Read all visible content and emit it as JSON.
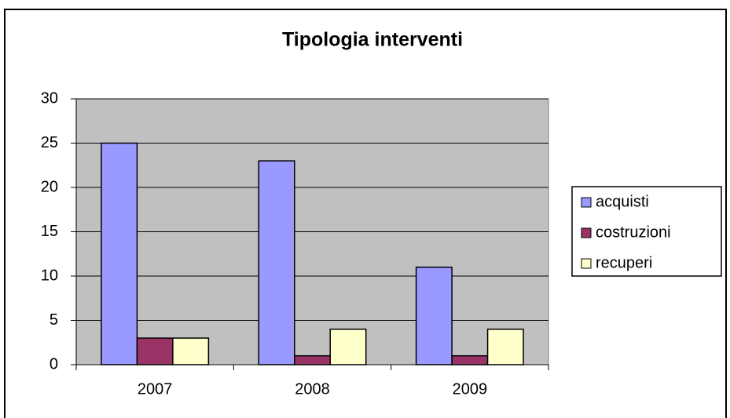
{
  "chart_data": {
    "type": "bar",
    "title": "Tipologia interventi",
    "categories": [
      "2007",
      "2008",
      "2009"
    ],
    "series": [
      {
        "name": "acquisti",
        "color": "#9999ff",
        "values": [
          25,
          23,
          11
        ]
      },
      {
        "name": "costruzioni",
        "color": "#993366",
        "values": [
          3,
          1,
          1
        ]
      },
      {
        "name": "recuperi",
        "color": "#ffffcc",
        "values": [
          3,
          4,
          4
        ]
      }
    ],
    "ylim": [
      0,
      30
    ],
    "yticks": [
      0,
      5,
      10,
      15,
      20,
      25,
      30
    ],
    "grid": true,
    "legend": "right"
  }
}
